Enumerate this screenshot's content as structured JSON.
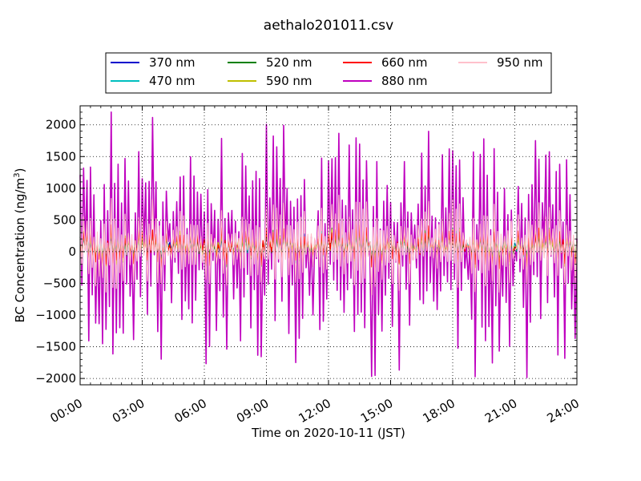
{
  "chart_data": {
    "type": "line",
    "title": "aethalo201011.csv",
    "xlabel": "Time on 2020-10-11 (JST)",
    "ylabel": "BC Concentration (ng/m",
    "ylabel_sup": "3",
    "ylabel_tail": ")",
    "xlim": [
      "00:00",
      "24:00"
    ],
    "ylim": [
      -2100,
      2300
    ],
    "xticks": [
      "00:00",
      "03:00",
      "06:00",
      "09:00",
      "12:00",
      "15:00",
      "18:00",
      "21:00",
      "24:00"
    ],
    "yticks": [
      -2000,
      -1500,
      -1000,
      -500,
      0,
      500,
      1000,
      1500,
      2000
    ],
    "ytick_labels": [
      "−2000",
      "−1500",
      "−1000",
      "−500",
      "0",
      "500",
      "1000",
      "1500",
      "2000"
    ],
    "grid": true,
    "legend_position": "top-center",
    "series": [
      {
        "name": "370 nm",
        "color": "#0000cc",
        "amplitude": 250
      },
      {
        "name": "470 nm",
        "color": "#00bfbf",
        "amplitude": 280
      },
      {
        "name": "520 nm",
        "color": "#008000",
        "amplitude": 300
      },
      {
        "name": "590 nm",
        "color": "#bfbf00",
        "amplitude": 300
      },
      {
        "name": "660 nm",
        "color": "#ff0000",
        "amplitude": 320
      },
      {
        "name": "880 nm",
        "color": "#bf00bf",
        "amplitude": 1900
      },
      {
        "name": "950 nm",
        "color": "#ffc0cb",
        "amplitude": 700
      }
    ],
    "sampling_interval_minutes": 5
  }
}
